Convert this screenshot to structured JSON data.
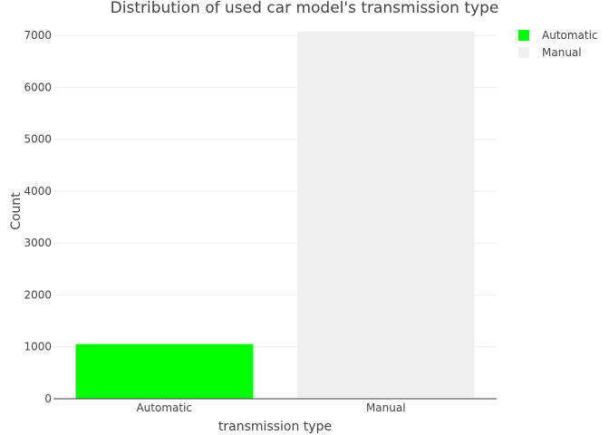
{
  "chart_data": {
    "type": "bar",
    "title": "Distribution of used car model's transmission type",
    "xlabel": "transmission type",
    "ylabel": "Count",
    "categories": [
      "Automatic",
      "Manual"
    ],
    "values": [
      1054,
      7078
    ],
    "colors": [
      "#00ff00",
      "#f0f0f0"
    ],
    "ylim": [
      0,
      7300
    ],
    "yticks": [
      0,
      1000,
      2000,
      3000,
      4000,
      5000,
      6000,
      7000
    ],
    "grid": true,
    "legend": {
      "placement": "top-right",
      "entries": [
        "Automatic",
        "Manual"
      ]
    }
  }
}
